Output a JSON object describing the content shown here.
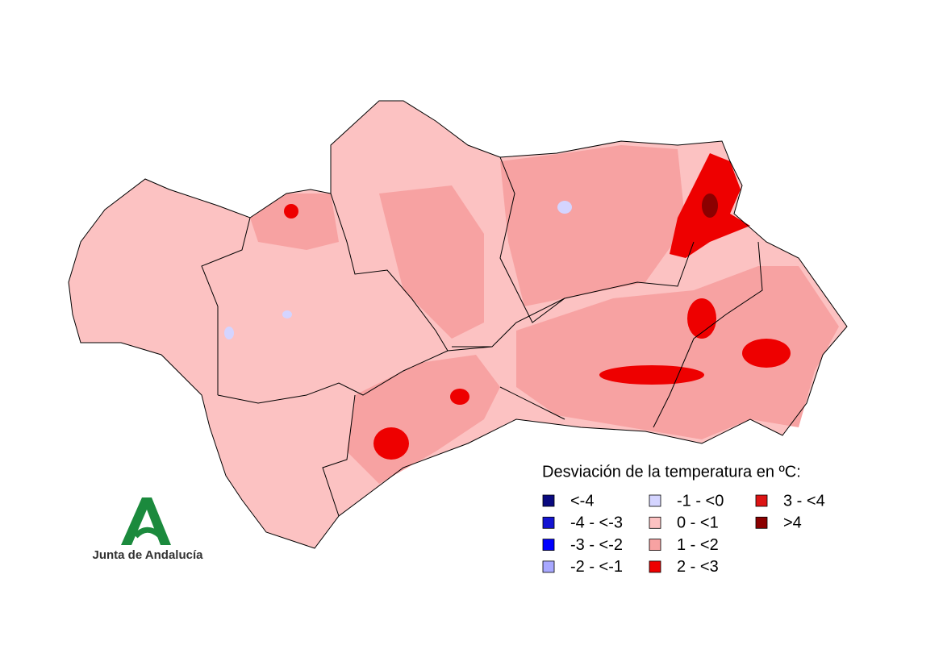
{
  "legend": {
    "title": "Desviación de la temperatura en ºC:",
    "items": [
      {
        "label": "<-4",
        "color": "#0a0a80"
      },
      {
        "label": "-4 - <-3",
        "color": "#1414d2"
      },
      {
        "label": "-3 - <-2",
        "color": "#0000ff"
      },
      {
        "label": "-2 - <-1",
        "color": "#a8a8ff"
      },
      {
        "label": "-1 - <0",
        "color": "#d4d4ff"
      },
      {
        "label": "0 - <1",
        "color": "#fcc2c2"
      },
      {
        "label": "1 - <2",
        "color": "#f7a2a2"
      },
      {
        "label": "2 - <3",
        "color": "#ee0000"
      },
      {
        "label": "3 - <4",
        "color": "#dc1414"
      },
      {
        "label": ">4",
        "color": "#8b0000"
      }
    ]
  },
  "logo": {
    "text": "Junta de Andalucía"
  }
}
